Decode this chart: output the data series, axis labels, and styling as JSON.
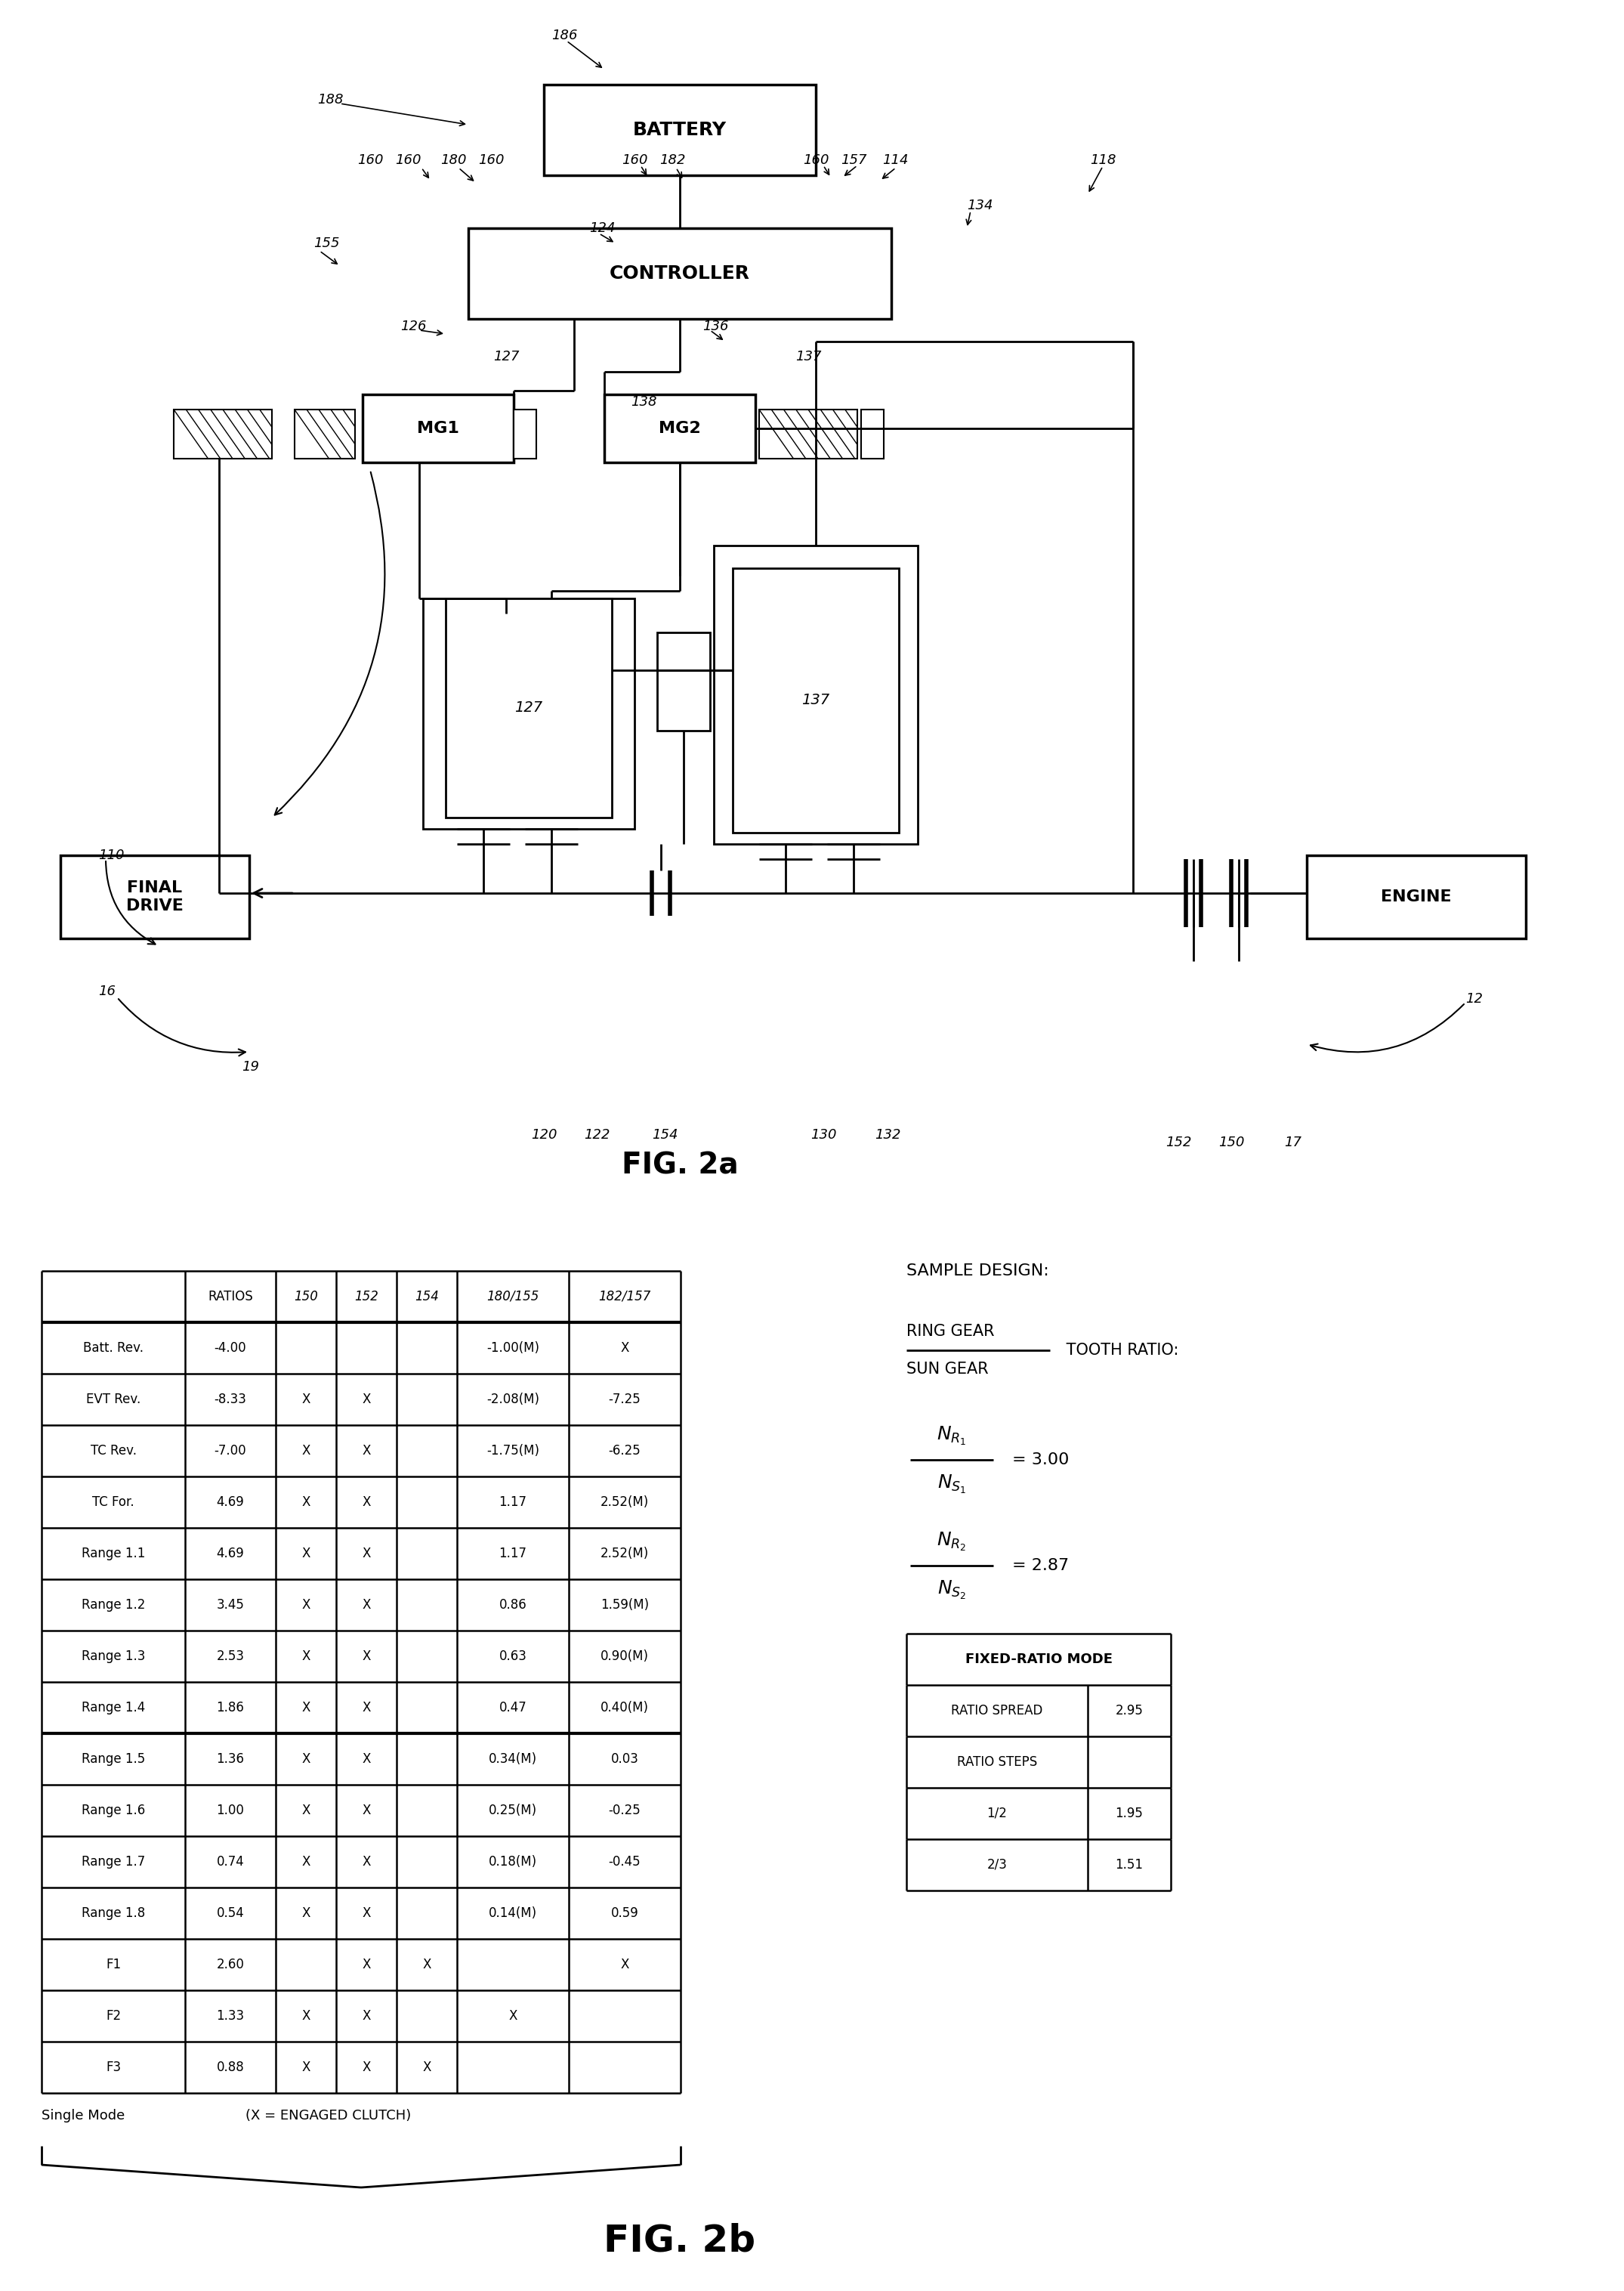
{
  "fig_title_a": "FIG. 2a",
  "fig_title_b": "FIG. 2b",
  "table": {
    "col_headers": [
      "",
      "RATIOS",
      "150",
      "152",
      "154",
      "180/155",
      "182/157"
    ],
    "rows": [
      [
        "Batt. Rev.",
        "-4.00",
        "",
        "",
        "",
        "-1.00(M)",
        "X"
      ],
      [
        "EVT Rev.",
        "-8.33",
        "X",
        "X",
        "",
        "-2.08(M)",
        "-7.25"
      ],
      [
        "TC Rev.",
        "-7.00",
        "X",
        "X",
        "",
        "-1.75(M)",
        "-6.25"
      ],
      [
        "TC For.",
        "4.69",
        "X",
        "X",
        "",
        "1.17",
        "2.52(M)"
      ],
      [
        "Range 1.1",
        "4.69",
        "X",
        "X",
        "",
        "1.17",
        "2.52(M)"
      ],
      [
        "Range 1.2",
        "3.45",
        "X",
        "X",
        "",
        "0.86",
        "1.59(M)"
      ],
      [
        "Range 1.3",
        "2.53",
        "X",
        "X",
        "",
        "0.63",
        "0.90(M)"
      ],
      [
        "Range 1.4",
        "1.86",
        "X",
        "X",
        "",
        "0.47",
        "0.40(M)"
      ],
      [
        "Range 1.5",
        "1.36",
        "X",
        "X",
        "",
        "0.34(M)",
        "0.03"
      ],
      [
        "Range 1.6",
        "1.00",
        "X",
        "X",
        "",
        "0.25(M)",
        "-0.25"
      ],
      [
        "Range 1.7",
        "0.74",
        "X",
        "X",
        "",
        "0.18(M)",
        "-0.45"
      ],
      [
        "Range 1.8",
        "0.54",
        "X",
        "X",
        "",
        "0.14(M)",
        "0.59"
      ],
      [
        "F1",
        "2.60",
        "",
        "X",
        "X",
        "",
        "X"
      ],
      [
        "F2",
        "1.33",
        "X",
        "X",
        "",
        "X",
        ""
      ],
      [
        "F3",
        "0.88",
        "X",
        "X",
        "X",
        "",
        ""
      ]
    ]
  },
  "fixed_ratio": {
    "title": "FIXED-RATIO MODE",
    "rows": [
      [
        "RATIO SPREAD",
        "2.95"
      ],
      [
        "RATIO STEPS",
        ""
      ],
      [
        "1/2",
        "1.95"
      ],
      [
        "2/3",
        "1.51"
      ]
    ]
  }
}
